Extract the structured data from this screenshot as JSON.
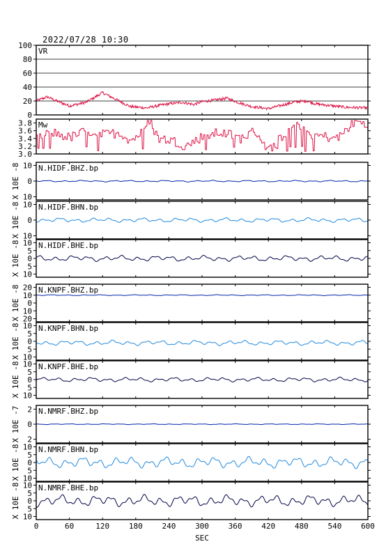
{
  "header": {
    "date": "2022/07/28 10:30"
  },
  "chart_data": {
    "type": "line",
    "xlabel": "SEC",
    "xlim": [
      0,
      600
    ],
    "xticks": [
      0,
      60,
      120,
      180,
      240,
      300,
      360,
      420,
      480,
      540,
      600
    ],
    "panels": [
      {
        "id": "vr",
        "label": "VR",
        "ylabel": "",
        "ylim": [
          0,
          100
        ],
        "yticks": [
          0,
          20,
          40,
          60,
          80,
          100
        ],
        "tick_labels": [
          "0",
          "20",
          "40",
          "60",
          "80",
          "100"
        ],
        "grid": true,
        "color": "#dd1144",
        "style": "line",
        "keypoints": [
          [
            0,
            20
          ],
          [
            20,
            26
          ],
          [
            40,
            19
          ],
          [
            60,
            13
          ],
          [
            90,
            18
          ],
          [
            120,
            32
          ],
          [
            140,
            24
          ],
          [
            170,
            12
          ],
          [
            200,
            10
          ],
          [
            225,
            14
          ],
          [
            240,
            16
          ],
          [
            265,
            18
          ],
          [
            285,
            15
          ],
          [
            300,
            19
          ],
          [
            320,
            21
          ],
          [
            345,
            24
          ],
          [
            365,
            18
          ],
          [
            390,
            12
          ],
          [
            420,
            9
          ],
          [
            445,
            14
          ],
          [
            470,
            19
          ],
          [
            490,
            20
          ],
          [
            505,
            16
          ],
          [
            525,
            14
          ],
          [
            560,
            11
          ],
          [
            600,
            10
          ]
        ]
      },
      {
        "id": "mw",
        "label": "Mw",
        "ylabel": "",
        "ylim": [
          3.0,
          3.9
        ],
        "yticks": [
          3.0,
          3.2,
          3.4,
          3.6,
          3.8
        ],
        "tick_labels": [
          "3.0",
          "3.2",
          "3.4",
          "3.6",
          "3.8"
        ],
        "grid": false,
        "color": "#dd1144",
        "style": "step",
        "keypoints": [
          [
            0,
            3.45
          ],
          [
            30,
            3.55
          ],
          [
            60,
            3.42
          ],
          [
            90,
            3.6
          ],
          [
            120,
            3.5
          ],
          [
            150,
            3.55
          ],
          [
            170,
            3.35
          ],
          [
            190,
            3.55
          ],
          [
            205,
            3.85
          ],
          [
            220,
            3.4
          ],
          [
            245,
            3.35
          ],
          [
            270,
            3.2
          ],
          [
            300,
            3.45
          ],
          [
            330,
            3.55
          ],
          [
            350,
            3.5
          ],
          [
            370,
            3.4
          ],
          [
            395,
            3.6
          ],
          [
            420,
            3.1
          ],
          [
            450,
            3.55
          ],
          [
            470,
            3.85
          ],
          [
            495,
            3.5
          ],
          [
            520,
            3.45
          ],
          [
            545,
            3.4
          ],
          [
            565,
            3.7
          ],
          [
            580,
            3.85
          ],
          [
            600,
            3.7
          ]
        ]
      },
      {
        "id": "hidf-bhz",
        "label": "N.HIDF.BHZ.bp",
        "ylabel": "X 10E -8",
        "ylim": [
          -12,
          12
        ],
        "yticks": [
          -10,
          0,
          10
        ],
        "tick_labels": [
          "10",
          "0",
          "10"
        ],
        "grid": false,
        "color": "#0022aa",
        "style": "wave",
        "amp": 0.5,
        "base": 0
      },
      {
        "id": "hidf-bhn",
        "label": "N.HIDF.BHN.bp",
        "ylabel": "X 10E -8",
        "ylim": [
          -12,
          12
        ],
        "yticks": [
          -10,
          0,
          10
        ],
        "tick_labels": [
          "10",
          "0",
          "10"
        ],
        "grid": false,
        "color": "#1e88dd",
        "style": "wave",
        "amp": 1.4,
        "base": 0
      },
      {
        "id": "hidf-bhe",
        "label": "N.HIDF.BHE.bp",
        "ylabel": "X 10E -8",
        "ylim": [
          -12,
          12
        ],
        "yticks": [
          -10,
          -5,
          0,
          5,
          10
        ],
        "tick_labels": [
          "10",
          "5",
          "0",
          "5",
          "10"
        ],
        "grid": false,
        "color": "#000044",
        "style": "wave",
        "amp": 1.8,
        "base": 0
      },
      {
        "id": "knpf-bhz",
        "label": "N.KNPF.BHZ.bp",
        "ylabel": "X 10E -8",
        "ylim": [
          -24,
          24
        ],
        "yticks": [
          -20,
          -10,
          0,
          10,
          20
        ],
        "tick_labels": [
          "20",
          "10",
          "0",
          "10",
          "20"
        ],
        "grid": false,
        "color": "#0022aa",
        "style": "wave",
        "amp": 0.6,
        "base": 10
      },
      {
        "id": "knpf-bhn",
        "label": "N.KNPF.BHN.bp",
        "ylabel": "X 10E -8",
        "ylim": [
          -12,
          12
        ],
        "yticks": [
          -10,
          -5,
          0,
          5,
          10
        ],
        "tick_labels": [
          "10",
          "5",
          "0",
          "5",
          "10"
        ],
        "grid": false,
        "color": "#1e88dd",
        "style": "wave",
        "amp": 1.6,
        "base": -1
      },
      {
        "id": "knpf-bhe",
        "label": "N.KNPF.BHE.bp",
        "ylabel": "X 10E -8",
        "ylim": [
          -12,
          12
        ],
        "yticks": [
          -10,
          -5,
          0,
          5,
          10
        ],
        "tick_labels": [
          "10",
          "5",
          "0",
          "5",
          "10"
        ],
        "grid": false,
        "color": "#000044",
        "style": "wave",
        "amp": 1.4,
        "base": 0
      },
      {
        "id": "nmrf-bhz",
        "label": "N.NMRF.BHZ.bp",
        "ylabel": "X 10E -7",
        "ylim": [
          -2.5,
          2.5
        ],
        "yticks": [
          -2,
          0,
          2
        ],
        "tick_labels": [
          "2",
          "0",
          "2"
        ],
        "grid": false,
        "color": "#0022aa",
        "style": "wave",
        "amp": 0.05,
        "base": 0
      },
      {
        "id": "nmrf-bhn",
        "label": "N.NMRF.BHN.bp",
        "ylabel": "X 10E -8",
        "ylim": [
          -12,
          12
        ],
        "yticks": [
          -10,
          -5,
          0,
          5,
          10
        ],
        "tick_labels": [
          "10",
          "5",
          "0",
          "5",
          "10"
        ],
        "grid": false,
        "color": "#1e88dd",
        "style": "wave",
        "amp": 3.5,
        "base": 0
      },
      {
        "id": "nmrf-bhe",
        "label": "N.NMRF.BHE.bp",
        "ylabel": "X 10E -8",
        "ylim": [
          -12,
          12
        ],
        "yticks": [
          -10,
          -5,
          0,
          5,
          10
        ],
        "tick_labels": [
          "10",
          "5",
          "0",
          "5",
          "10"
        ],
        "grid": false,
        "color": "#000044",
        "style": "wave",
        "amp": 3.6,
        "base": 0
      }
    ]
  }
}
